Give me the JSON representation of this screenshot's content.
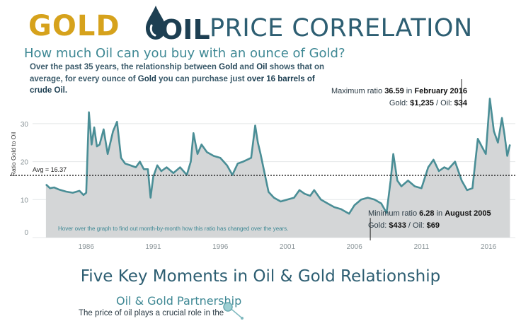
{
  "header": {
    "gold_logo": "GOLD",
    "oil_logo": "OIL",
    "title": "PRICE CORRELATION",
    "subtitle": "How much Oil can you buy with an ounce of Gold?"
  },
  "intro": {
    "p1": "Over the past 35 years, the relationship between ",
    "gold1": "Gold",
    "p2": " and ",
    "oil1": "Oil",
    "p3": " shows that on average, for every ounce of ",
    "gold2": "Gold",
    "p4": " you can purchase just ",
    "emph": "over 16 barrels of crude Oil."
  },
  "annotations": {
    "max_prefix": "Maximum ratio ",
    "max_value": "36.59",
    "max_in": " in ",
    "max_date": "February 2016",
    "max_gold_label": "Gold: ",
    "max_gold": "$1,235",
    "max_sep": " / Oil: ",
    "max_oil": "$34",
    "min_prefix": "Minimum ratio ",
    "min_value": "6.28",
    "min_in": " in ",
    "min_date": "August 2005",
    "min_gold_label": "Gold: ",
    "min_gold": "$433",
    "min_sep": " / Oil: ",
    "min_oil": "$69",
    "avg_label": "Avg = 16.37",
    "hover_note": "Hover over the graph to find out month-by-month how this ratio has changed over the years."
  },
  "section": {
    "title": "Five Key Moments in Oil & Gold Relationship",
    "card_title": "Oil & Gold Partnership",
    "card_text": "The price of oil plays a crucial role in the"
  },
  "colors": {
    "line": "#4a8e96",
    "fill": "#d4d6d7",
    "grid": "#e4e7e8",
    "gold": "#d6a21c",
    "navy": "#1d3f52",
    "teal": "#3e8894"
  },
  "chart_data": {
    "type": "area",
    "title": "",
    "xlabel": "",
    "ylabel": "Ratio Gold to Oil",
    "ylim": [
      0,
      35
    ],
    "xlim": [
      1982,
      2018
    ],
    "yticks": [
      0,
      10,
      20,
      30
    ],
    "xticks": [
      "1986",
      "1991",
      "1996",
      "2001",
      "2006",
      "2011",
      "2016"
    ],
    "grid": true,
    "average": 16.37,
    "x": [
      1983.0,
      1983.3,
      1983.6,
      1984.0,
      1984.5,
      1985.0,
      1985.5,
      1985.8,
      1986.0,
      1986.2,
      1986.4,
      1986.6,
      1986.8,
      1987.0,
      1987.3,
      1987.6,
      1988.0,
      1988.3,
      1988.6,
      1988.9,
      1989.3,
      1989.7,
      1990.0,
      1990.3,
      1990.6,
      1990.8,
      1991.0,
      1991.3,
      1991.6,
      1992.0,
      1992.5,
      1993.0,
      1993.5,
      1993.8,
      1994.0,
      1994.3,
      1994.6,
      1995.0,
      1995.5,
      1996.0,
      1996.5,
      1996.9,
      1997.3,
      1997.7,
      1998.0,
      1998.3,
      1998.6,
      1998.8,
      1999.0,
      1999.3,
      1999.6,
      2000.0,
      2000.5,
      2001.0,
      2001.5,
      2001.9,
      2002.3,
      2002.7,
      2003.0,
      2003.5,
      2004.0,
      2004.5,
      2005.0,
      2005.6,
      2006.0,
      2006.5,
      2007.0,
      2007.5,
      2008.0,
      2008.4,
      2008.7,
      2008.9,
      2009.2,
      2009.5,
      2010.0,
      2010.5,
      2011.0,
      2011.5,
      2011.9,
      2012.3,
      2012.7,
      2013.0,
      2013.5,
      2014.0,
      2014.4,
      2014.8,
      2015.0,
      2015.2,
      2015.5,
      2015.8,
      2016.1,
      2016.4,
      2016.7,
      2017.0,
      2017.2,
      2017.4,
      2017.6
    ],
    "values": [
      14.0,
      13.0,
      13.2,
      12.6,
      12.1,
      11.8,
      12.3,
      11.2,
      11.8,
      33.0,
      24.5,
      29.0,
      24.0,
      24.5,
      28.5,
      22.0,
      28.0,
      30.5,
      21.0,
      19.5,
      19.0,
      18.5,
      20.0,
      18.0,
      18.0,
      10.5,
      16.0,
      19.0,
      17.5,
      18.5,
      17.0,
      18.5,
      16.5,
      20.0,
      27.5,
      22.0,
      24.5,
      22.5,
      21.5,
      21.0,
      19.0,
      16.5,
      19.5,
      20.0,
      20.5,
      21.0,
      29.5,
      25.0,
      22.0,
      17.0,
      12.0,
      10.5,
      9.5,
      10.0,
      10.5,
      12.5,
      11.5,
      11.0,
      12.5,
      10.0,
      9.0,
      8.0,
      7.5,
      6.28,
      8.5,
      10.0,
      10.5,
      10.0,
      9.0,
      6.5,
      15.0,
      22.0,
      15.0,
      13.5,
      15.0,
      13.5,
      13.0,
      18.5,
      20.5,
      17.5,
      18.5,
      18.0,
      20.0,
      15.0,
      12.5,
      13.0,
      19.5,
      26.0,
      24.0,
      22.0,
      36.59,
      28.0,
      25.0,
      31.5,
      27.0,
      21.5,
      24.5
    ]
  }
}
